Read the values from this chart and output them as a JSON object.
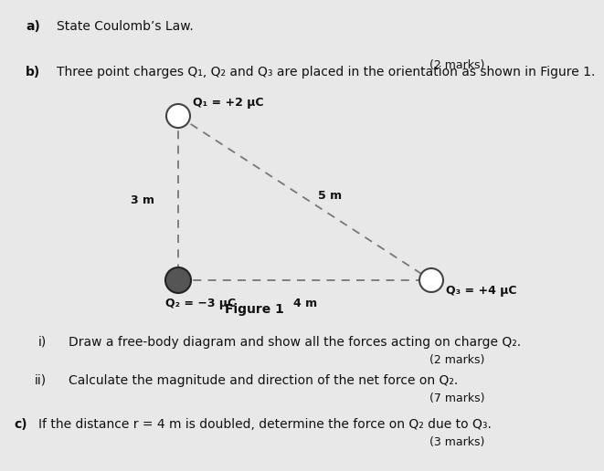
{
  "bg_color": "#e8e8e8",
  "page_bg": "#f5f5f5",
  "title_a": "State Coulomb’s Law.",
  "marks_a": "(2 marks)",
  "title_b": "Three point charges Q₁, Q₂ and Q₃ are placed in the orientation as shown in Figure 1.",
  "label_b": "b)",
  "label_a": "a)",
  "Q1_label": "Q₁ = +2 μC",
  "Q2_label": "Q₂ = −3 μC",
  "Q3_label": "Q₃ = +4 μC",
  "dist_12": "3 m",
  "dist_23": "4 m",
  "dist_13": "5 m",
  "figure_caption": "Figure 1",
  "i_label": "i)",
  "i_text": "Draw a free-body diagram and show all the forces acting on charge Q₂.",
  "i_marks": "(2 marks)",
  "ii_label": "ii)",
  "ii_text": "Calculate the magnitude and direction of the net force on Q₂.",
  "ii_marks": "(7 marks)",
  "c_label": "c)",
  "c_text": "If the distance r = 4 m is doubled, determine the force on Q₂ due to Q₃.",
  "c_marks": "(3 marks)",
  "Q1_color": "#ffffff",
  "Q1_edge": "#444444",
  "Q2_color": "#555555",
  "Q2_edge": "#222222",
  "Q3_color": "#ffffff",
  "Q3_edge": "#444444",
  "line_color": "#777777",
  "text_color": "#111111",
  "dashes": [
    5,
    4
  ]
}
